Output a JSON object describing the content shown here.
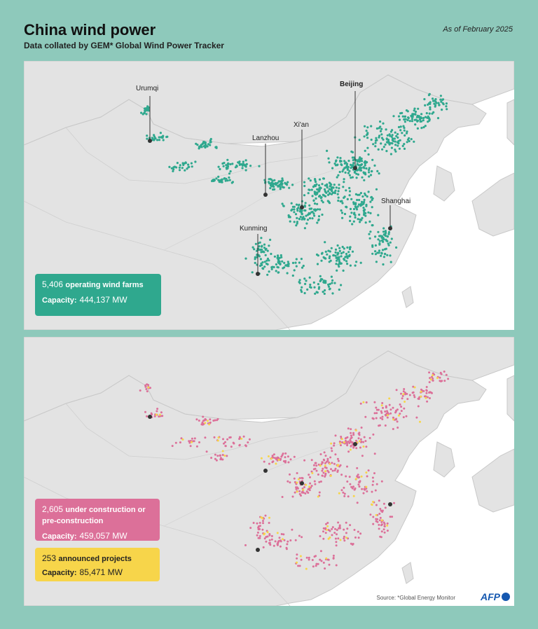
{
  "title": "China wind power",
  "subtitle": "Data collated by GEM* Global Wind Power Tracker",
  "as_of": "As of February 2025",
  "cities": {
    "urumqi": "Urumqi",
    "beijing": "Beijing",
    "xian": "Xi'an",
    "lanzhou": "Lanzhou",
    "shanghai": "Shanghai",
    "kunming": "Kunming"
  },
  "operating": {
    "count": "5,406",
    "label": "operating wind farms",
    "capacity_label": "Capacity:",
    "capacity_value": "444,137 MW",
    "color": "#2fa88e"
  },
  "construction": {
    "count": "2,605",
    "label": "under construction or pre-construction",
    "capacity_label": "Capacity:",
    "capacity_value": "459,057 MW",
    "color": "#dc7099"
  },
  "announced": {
    "count": "253",
    "label": "announced projects",
    "capacity_label": "Capacity:",
    "capacity_value": "85,471 MW",
    "color": "#f7d54a"
  },
  "colors": {
    "background": "#8ec9bb",
    "land": "#e3e3e3",
    "sea": "#ffffff",
    "city_dot": "#333333"
  },
  "source": "Source: *Global Energy Monitor",
  "logo": "AFP"
}
